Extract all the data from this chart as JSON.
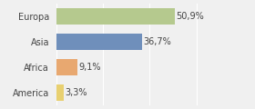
{
  "categories": [
    "Europa",
    "Asia",
    "Africa",
    "America"
  ],
  "values": [
    50.9,
    36.7,
    9.1,
    3.3
  ],
  "labels": [
    "50,9%",
    "36,7%",
    "9,1%",
    "3,3%"
  ],
  "bar_colors": [
    "#b5c98e",
    "#6f8fbb",
    "#e8a870",
    "#e8d070"
  ],
  "background_color": "#f0f0f0",
  "xlim": [
    0,
    72
  ],
  "bar_height": 0.65,
  "fontsize_labels": 7,
  "fontsize_ticks": 7,
  "grid_color": "#ffffff",
  "text_color": "#444444"
}
